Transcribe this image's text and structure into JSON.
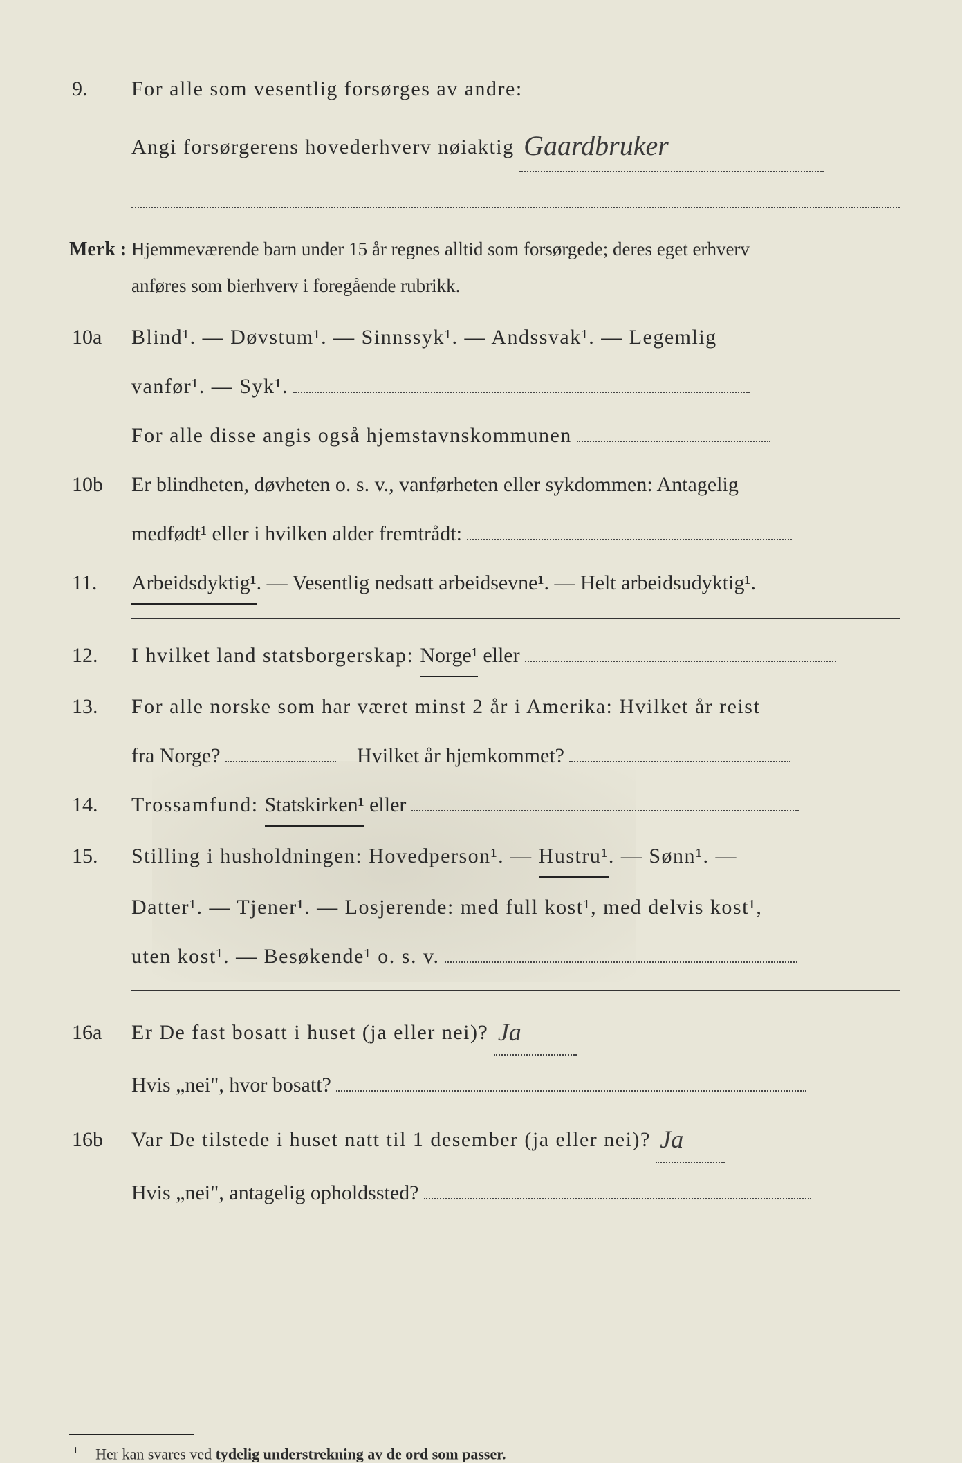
{
  "q9": {
    "num": "9.",
    "line1_a": "For alle som vesentlig forsørges av andre:",
    "line2_a": "Angi forsørgerens hovederhverv nøiaktig",
    "answer": "Gaardbruker"
  },
  "merk": {
    "label": "Merk :",
    "text1": "Hjemmeværende barn under 15 år regnes alltid som forsørgede; deres eget erhverv",
    "text2": "anføres som bierhverv i foregående rubrikk."
  },
  "q10a": {
    "num": "10a",
    "opts": "Blind¹.  —  Døvstum¹.  —  Sinnssyk¹.  —  Andssvak¹.  —  Legemlig",
    "opts2_a": "vanfør¹.  —  Syk¹.",
    "line3": "For alle disse angis også hjemstavnskommunen"
  },
  "q10b": {
    "num": "10b",
    "line1": "Er blindheten, døvheten o. s. v., vanførheten eller sykdommen: Antagelig",
    "line2": "medfødt¹ eller i hvilken alder fremtrådt:"
  },
  "q11": {
    "num": "11.",
    "opt1": "Arbeidsdyktig¹",
    "rest": ". — Vesentlig nedsatt arbeidsevne¹. — Helt arbeidsudyktig¹."
  },
  "q12": {
    "num": "12.",
    "pre": "I hvilket land statsborgerskap:  ",
    "opt": "Norge¹",
    "post": " eller"
  },
  "q13": {
    "num": "13.",
    "line1": "For alle norske som har været minst 2 år i Amerika: Hvilket år reist",
    "line2a": "fra Norge?",
    "line2b": "Hvilket år hjemkommet?"
  },
  "q14": {
    "num": "14.",
    "pre": "Trossamfund:  ",
    "opt": "Statskirken¹",
    "post": " eller"
  },
  "q15": {
    "num": "15.",
    "line1a": "Stilling i husholdningen: Hovedperson¹.  —  ",
    "opt": "Hustru¹",
    "line1b": ".  —  Sønn¹.  —",
    "line2": "Datter¹.  —  Tjener¹.  —  Losjerende: med full kost¹, med delvis kost¹,",
    "line3": "uten kost¹.  —  Besøkende¹ o. s. v."
  },
  "q16a": {
    "num": "16a",
    "q": "Er De fast bosatt i huset (ja eller nei)?",
    "ans": "Ja",
    "sub": "Hvis „nei\", hvor bosatt?"
  },
  "q16b": {
    "num": "16b",
    "q": "Var De tilstede i huset natt til 1 desember (ja eller nei)?",
    "ans": "Ja",
    "sub": "Hvis „nei\", antagelig opholdssted?"
  },
  "footnote": {
    "marker": "1",
    "text_a": "Her kan svares ved ",
    "text_bold": "tydelig understrekning av de ord som passer."
  }
}
